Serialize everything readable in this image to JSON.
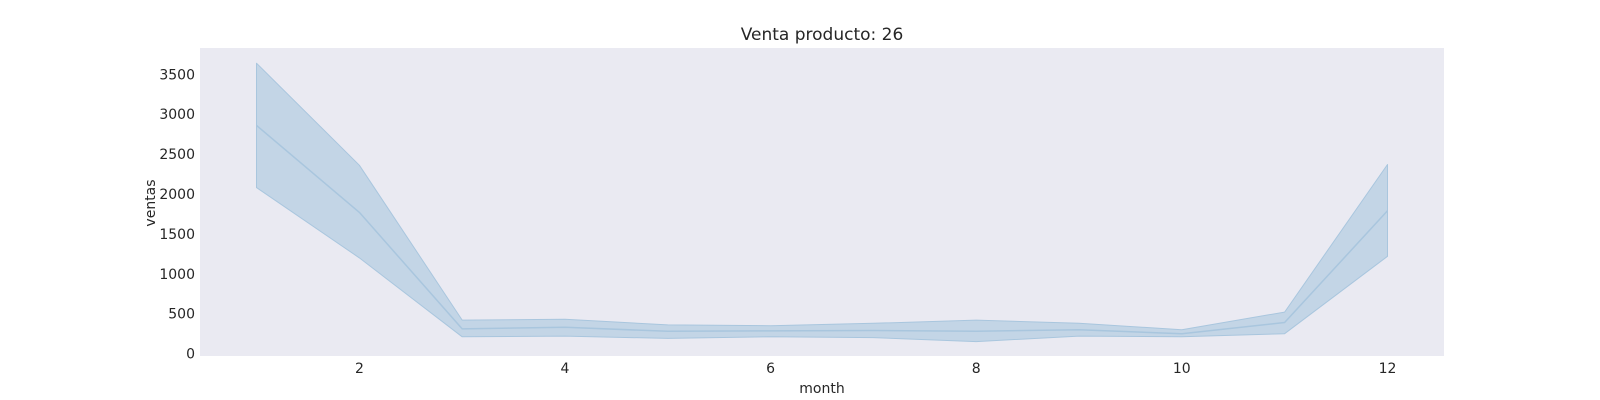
{
  "chart_data": {
    "type": "line",
    "title": "Venta producto: 26",
    "xlabel": "month",
    "ylabel": "ventas",
    "xlim": [
      0.45,
      12.55
    ],
    "ylim": [
      -30,
      3830
    ],
    "x_ticks": [
      2,
      4,
      6,
      8,
      10,
      12
    ],
    "y_ticks": [
      0,
      500,
      1000,
      1500,
      2000,
      2500,
      3000,
      3500
    ],
    "grid": false,
    "legend": "none",
    "colors": {
      "plot_background": "#eaeaf2",
      "line": "#a9c6de",
      "band": "#a9c6de"
    },
    "series": [
      {
        "x": [
          1,
          2,
          3,
          4,
          5,
          6,
          7,
          8,
          9,
          10,
          11,
          12
        ],
        "mean": [
          2860,
          1770,
          310,
          330,
          280,
          285,
          290,
          280,
          300,
          250,
          390,
          1790
        ],
        "lower": [
          2080,
          1200,
          210,
          220,
          190,
          210,
          200,
          150,
          220,
          210,
          250,
          1220
        ],
        "upper": [
          3640,
          2360,
          420,
          430,
          360,
          350,
          380,
          420,
          380,
          300,
          520,
          2370
        ]
      }
    ]
  }
}
